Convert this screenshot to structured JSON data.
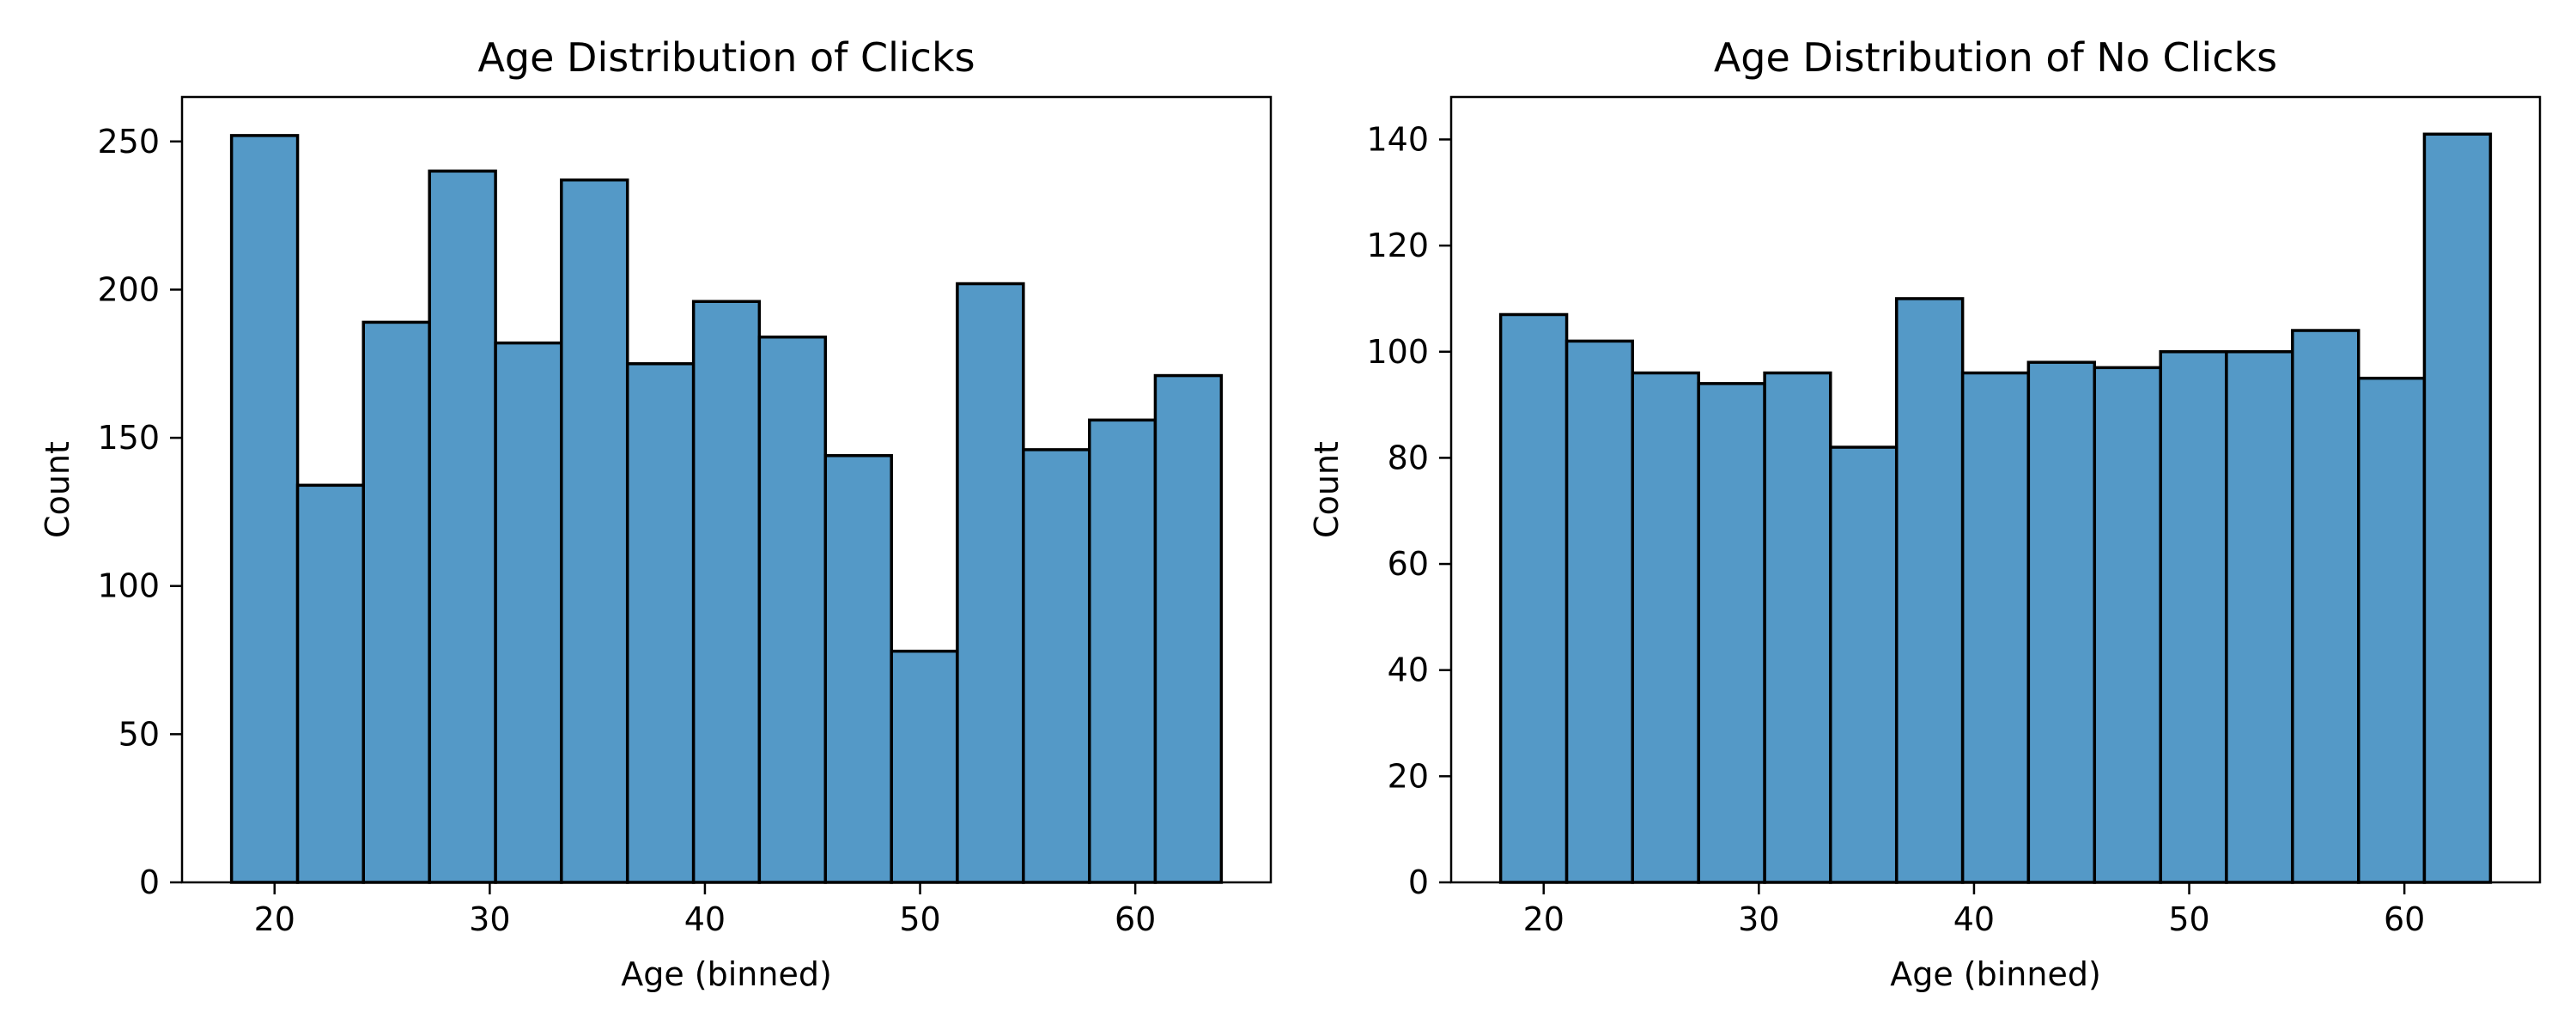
{
  "chart_data": [
    {
      "type": "bar",
      "title": "Age Distribution of Clicks",
      "xlabel": "Age (binned)",
      "ylabel": "Count",
      "bin_edges": [
        18,
        21.07,
        24.13,
        27.2,
        30.27,
        33.33,
        36.4,
        39.47,
        42.53,
        45.6,
        48.67,
        51.73,
        54.8,
        57.87,
        60.93,
        64
      ],
      "values": [
        252,
        134,
        189,
        240,
        182,
        237,
        175,
        196,
        184,
        144,
        78,
        202,
        146,
        156,
        171
      ],
      "xlim": [
        15.7,
        66.3
      ],
      "ylim": [
        0,
        265
      ],
      "xticks": [
        20,
        30,
        40,
        50,
        60
      ],
      "yticks": [
        0,
        50,
        100,
        150,
        200,
        250
      ],
      "bar_color": "#5499c7",
      "edge_color": "#000000",
      "grid": false,
      "legend": "none"
    },
    {
      "type": "bar",
      "title": "Age Distribution of No Clicks",
      "xlabel": "Age (binned)",
      "ylabel": "Count",
      "bin_edges": [
        18,
        21.07,
        24.13,
        27.2,
        30.27,
        33.33,
        36.4,
        39.47,
        42.53,
        45.6,
        48.67,
        51.73,
        54.8,
        57.87,
        60.93,
        64
      ],
      "values": [
        107,
        102,
        96,
        94,
        96,
        82,
        110,
        96,
        98,
        97,
        100,
        100,
        104,
        95,
        141
      ],
      "xlim": [
        15.7,
        66.3
      ],
      "ylim": [
        0,
        148
      ],
      "xticks": [
        20,
        30,
        40,
        50,
        60
      ],
      "yticks": [
        0,
        20,
        40,
        60,
        80,
        100,
        120,
        140
      ],
      "bar_color": "#5499c7",
      "edge_color": "#000000",
      "grid": false,
      "legend": "none"
    }
  ]
}
